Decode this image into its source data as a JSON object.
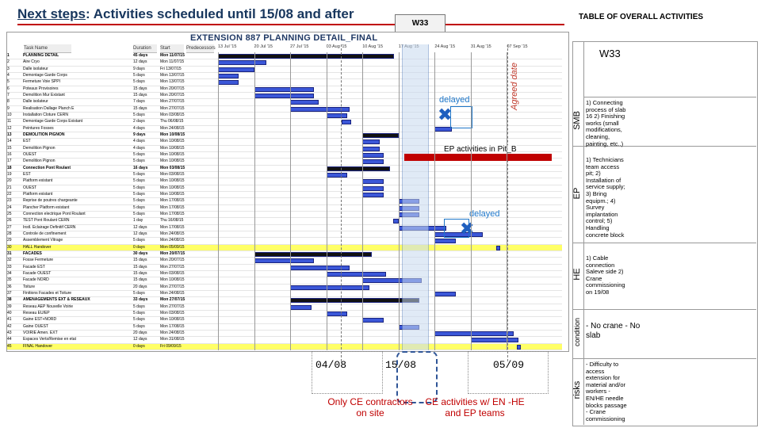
{
  "heading": {
    "prefix": "Next steps",
    "suffix": ": Activities scheduled until 15/08 and after"
  },
  "w33_header": "W33",
  "table_title": "TABLE OF OVERALL ACTIVITIES",
  "gantt": {
    "title": "EXTENSION 887 PLANNING DETAIL_FINAL",
    "columns": [
      "Task Name",
      "Duration",
      "Start",
      "Predecessors"
    ],
    "week_labels": [
      "13 Jul '15",
      "20 Jul '15",
      "27 Jul '15",
      "03 Aug '15",
      "10 Aug '15",
      "17 Aug '15",
      "24 Aug '15",
      "31 Aug '15",
      "07 Sep '15"
    ],
    "rows": [
      {
        "id": "1",
        "name": "PLANNING DETAIL",
        "dur": "45 days",
        "start": "Mon 11/07/15",
        "style": "bold"
      },
      {
        "id": "2",
        "name": "Aire Cryo",
        "dur": "12 days",
        "start": "Mon 11/07/15"
      },
      {
        "id": "3",
        "name": "Dalle isolateur",
        "dur": "9 days",
        "start": "Fri 13/07/15"
      },
      {
        "id": "4",
        "name": "Demontage Garde Corps",
        "dur": "5 days",
        "start": "Mon 13/07/15"
      },
      {
        "id": "5",
        "name": "Fermeture Voie SPPI",
        "dur": "5 days",
        "start": "Mon 13/07/15"
      },
      {
        "id": "6",
        "name": "Poteaux Provisoires",
        "dur": "15 days",
        "start": "Mon 20/07/15"
      },
      {
        "id": "7",
        "name": "Demolition Mur Existant",
        "dur": "15 days",
        "start": "Mon 20/07/15"
      },
      {
        "id": "8",
        "name": "Dalle isolateur",
        "dur": "7 days",
        "start": "Mon 27/07/15"
      },
      {
        "id": "9",
        "name": "Realisation Dallage Planch E",
        "dur": "15 days",
        "start": "Mon 27/07/15"
      },
      {
        "id": "10",
        "name": "Installation Cloture CERN",
        "dur": "5 days",
        "start": "Mon 03/08/15"
      },
      {
        "id": "11",
        "name": "Demontage Garde Corps Existant",
        "dur": "2 days",
        "start": "Thu 06/08/15"
      },
      {
        "id": "12",
        "name": "Peintures Fosses",
        "dur": "4 days",
        "start": "Mon 24/08/15"
      },
      {
        "id": "13",
        "name": "DEMOLITION PIGNON",
        "dur": "9 days",
        "start": "Mon 10/08/15",
        "style": "bold"
      },
      {
        "id": "14",
        "name": "EST",
        "dur": "4 days",
        "start": "Mon 10/08/15"
      },
      {
        "id": "15",
        "name": "Demolition Pignon",
        "dur": "4 days",
        "start": "Mon 10/08/15"
      },
      {
        "id": "16",
        "name": "OUEST",
        "dur": "5 days",
        "start": "Mon 10/08/15"
      },
      {
        "id": "17",
        "name": "Demolition Pignon",
        "dur": "5 days",
        "start": "Mon 10/08/15"
      },
      {
        "id": "18",
        "name": "Connection Pont Roulant",
        "dur": "16 days",
        "start": "Mon 03/08/15",
        "style": "bold"
      },
      {
        "id": "19",
        "name": "EST",
        "dur": "5 days",
        "start": "Mon 03/08/15"
      },
      {
        "id": "20",
        "name": "Platform existant",
        "dur": "5 days",
        "start": "Mon 10/08/15"
      },
      {
        "id": "21",
        "name": "OUEST",
        "dur": "5 days",
        "start": "Mon 10/08/15"
      },
      {
        "id": "22",
        "name": "Platform existant",
        "dur": "5 days",
        "start": "Mon 10/08/15"
      },
      {
        "id": "23",
        "name": "Reprise de poutres chargeante",
        "dur": "5 days",
        "start": "Mon 17/08/15"
      },
      {
        "id": "24",
        "name": "Plancher Platform existant",
        "dur": "5 days",
        "start": "Mon 17/08/15"
      },
      {
        "id": "25",
        "name": "Connection electrique Pont Roulant",
        "dur": "5 days",
        "start": "Mon 17/08/15"
      },
      {
        "id": "26",
        "name": "TEST Pont Roulant CERN",
        "dur": "1 day",
        "start": "Thu 16/08/15"
      },
      {
        "id": "27",
        "name": "Instl. Eclairage Definitif CERN",
        "dur": "12 days",
        "start": "Mon 17/08/15"
      },
      {
        "id": "28",
        "name": "Controle de confinement",
        "dur": "12 days",
        "start": "Mon 24/08/15"
      },
      {
        "id": "29",
        "name": "Assemblement Vitrage",
        "dur": "5 days",
        "start": "Mon 24/08/15"
      },
      {
        "id": "30",
        "name": "HALL Handover",
        "dur": "0 days",
        "start": "Mon 05/09/15",
        "style": "yellow"
      },
      {
        "id": "31",
        "name": "FACADES",
        "dur": "30 days",
        "start": "Mon 20/07/15",
        "style": "bold"
      },
      {
        "id": "32",
        "name": "Fosse Fermeture",
        "dur": "15 days",
        "start": "Mon 20/07/15"
      },
      {
        "id": "33",
        "name": "Facade EST",
        "dur": "15 days",
        "start": "Mon 27/07/15"
      },
      {
        "id": "34",
        "name": "Facade OUEST",
        "dur": "15 days",
        "start": "Mon 03/08/15"
      },
      {
        "id": "35",
        "name": "Facade NORD",
        "dur": "15 days",
        "start": "Mon 10/08/15"
      },
      {
        "id": "36",
        "name": "Toiture",
        "dur": "20 days",
        "start": "Mon 27/07/15"
      },
      {
        "id": "37",
        "name": "Finitions Facades et Toiture",
        "dur": "5 days",
        "start": "Mon 24/08/15"
      },
      {
        "id": "38",
        "name": "AMENAGEMENTS EXT & RESEAUX",
        "dur": "33 days",
        "start": "Mon 27/07/15",
        "style": "bold"
      },
      {
        "id": "39",
        "name": "Reseau AEP Nouvelle Voirie",
        "dur": "5 days",
        "start": "Mon 27/07/15"
      },
      {
        "id": "40",
        "name": "Reseau EU/EP",
        "dur": "5 days",
        "start": "Mon 03/08/15"
      },
      {
        "id": "41",
        "name": "Gaine EST+NORD",
        "dur": "5 days",
        "start": "Mon 10/08/15"
      },
      {
        "id": "42",
        "name": "Gaine OUEST",
        "dur": "5 days",
        "start": "Mon 17/08/15"
      },
      {
        "id": "43",
        "name": "VOIRIE Amen. EXT",
        "dur": "20 days",
        "start": "Mon 24/08/15"
      },
      {
        "id": "44",
        "name": "Espaces Verts/Remise en etat",
        "dur": "12 days",
        "start": "Mon 31/08/15"
      },
      {
        "id": "45",
        "name": "FINAL Handover",
        "dur": "0 days",
        "start": "Fri 09/09/15",
        "style": "yellow"
      }
    ]
  },
  "annotations": {
    "agreed_date": "Agreed date",
    "delayed": "delayed",
    "ep_activities": "EP activities in Pit_B",
    "cross_glyph": "✖"
  },
  "dates": {
    "d1": "04/08",
    "d2": "15/08",
    "d3": "05/09"
  },
  "notes": {
    "only_ce": "Only CE contractors on site",
    "ce_activities": "CE activities w/ EN -HE and EP teams"
  },
  "table": {
    "week": "W33",
    "sections": [
      {
        "label": "SMB",
        "desc": "1) Connecting process of slab 16 2) Finishing works (small modifications, cleaning, painting, etc..)"
      },
      {
        "label": "EP",
        "desc": "1) Technicians team access pit; 2) Installation of service supply; 3) Bring equipm.; 4) Survey implantation control; 5) Handling concrete block"
      },
      {
        "label": "HE",
        "desc": "1) Cable connection Saleve side 2) Crane commissioning on 19/08"
      },
      {
        "label": "condition",
        "desc": "- No crane - No slab"
      },
      {
        "label": "risks",
        "desc": "- Difficulty to access extension for material and/or workers - EN/HE needle blocks passage - Crane commissioning"
      }
    ]
  }
}
